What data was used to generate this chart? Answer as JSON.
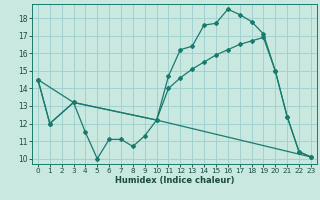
{
  "title": "",
  "xlabel": "Humidex (Indice chaleur)",
  "bg_color": "#c8e8e0",
  "grid_color": "#9ecece",
  "line_color": "#1a7a6e",
  "text_color": "#1a4a40",
  "xlim": [
    -0.5,
    23.5
  ],
  "ylim": [
    9.7,
    18.8
  ],
  "yticks": [
    10,
    11,
    12,
    13,
    14,
    15,
    16,
    17,
    18
  ],
  "xticks": [
    0,
    1,
    2,
    3,
    4,
    5,
    6,
    7,
    8,
    9,
    10,
    11,
    12,
    13,
    14,
    15,
    16,
    17,
    18,
    19,
    20,
    21,
    22,
    23
  ],
  "line1_x": [
    0,
    1,
    3,
    4,
    5,
    6,
    7,
    8,
    9,
    10,
    11,
    12,
    13,
    14,
    15,
    16,
    17,
    18,
    19,
    20,
    21,
    22,
    23
  ],
  "line1_y": [
    14.5,
    12.0,
    13.2,
    11.5,
    10.0,
    11.1,
    11.1,
    10.7,
    11.3,
    12.2,
    14.7,
    16.2,
    16.4,
    17.6,
    17.7,
    18.5,
    18.2,
    17.8,
    17.1,
    15.0,
    12.4,
    10.4,
    10.1
  ],
  "line2_x": [
    0,
    1,
    3,
    10,
    11,
    12,
    13,
    14,
    15,
    16,
    17,
    18,
    19,
    20,
    21,
    22,
    23
  ],
  "line2_y": [
    14.5,
    12.0,
    13.2,
    12.2,
    14.0,
    14.6,
    15.1,
    15.5,
    15.9,
    16.2,
    16.5,
    16.7,
    16.9,
    15.0,
    12.4,
    10.4,
    10.1
  ],
  "line3_x": [
    0,
    3,
    10,
    23
  ],
  "line3_y": [
    14.5,
    13.2,
    12.2,
    10.1
  ]
}
